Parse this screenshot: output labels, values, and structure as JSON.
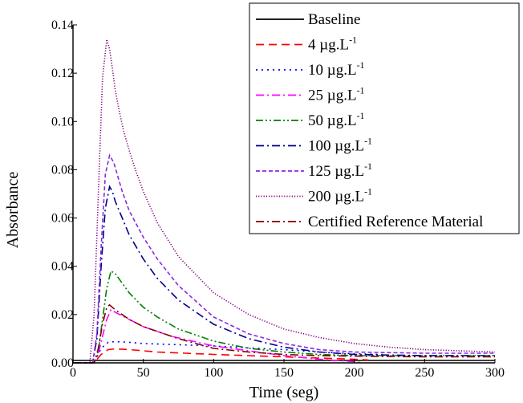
{
  "chart_data": {
    "type": "line",
    "xlabel": "Time (seg)",
    "ylabel": "Absorbance",
    "xlim": [
      0,
      300
    ],
    "ylim": [
      0,
      0.14
    ],
    "xticks": [
      0,
      50,
      100,
      150,
      200,
      250,
      300
    ],
    "yticks": [
      0.0,
      0.02,
      0.04,
      0.06,
      0.08,
      0.1,
      0.12,
      0.14
    ],
    "xtick_labels": [
      "0",
      "50",
      "100",
      "150",
      "200",
      "250",
      "300"
    ],
    "ytick_labels": [
      "0.00",
      "0.02",
      "0.04",
      "0.06",
      "0.08",
      "0.10",
      "0.12",
      "0.14"
    ],
    "grid": false,
    "legend_position": "top-right",
    "series": [
      {
        "name": "Baseline",
        "color": "#000000",
        "dash": "solid",
        "label_main": "Baseline",
        "label_sup": "",
        "x": [
          0,
          50,
          100,
          150,
          200,
          250,
          300
        ],
        "y": [
          0.001,
          0.001,
          0.001,
          0.001,
          0.001,
          0.001,
          0.001
        ]
      },
      {
        "name": "4 µg.L-1",
        "color": "#ff0000",
        "dash": "long-dash",
        "label_main": "4 µg.L",
        "label_sup": "-1",
        "x": [
          0,
          15,
          20,
          25,
          30,
          40,
          50,
          60,
          80,
          100,
          125,
          150,
          175,
          200,
          210
        ],
        "y": [
          0.0,
          0.0,
          0.0035,
          0.0055,
          0.0058,
          0.0055,
          0.005,
          0.0045,
          0.004,
          0.0035,
          0.003,
          0.0025,
          0.002,
          0.0015,
          0.0012
        ]
      },
      {
        "name": "10 µg.L-1",
        "color": "#0000ff",
        "dash": "dot",
        "label_main": "10 µg.L",
        "label_sup": "-1",
        "x": [
          0,
          15,
          20,
          25,
          30,
          40,
          50,
          75,
          100,
          125,
          150,
          175,
          200,
          220
        ],
        "y": [
          0.0,
          0.0,
          0.006,
          0.0085,
          0.0088,
          0.0085,
          0.008,
          0.0075,
          0.007,
          0.0062,
          0.0055,
          0.0045,
          0.0038,
          0.0035
        ]
      },
      {
        "name": "25 µg.L-1",
        "color": "#ff00ff",
        "dash": "dash-dot",
        "label_main": "25 µg.L",
        "label_sup": "-1",
        "x": [
          0,
          15,
          18,
          21,
          24,
          27,
          30,
          40,
          50,
          70,
          100,
          125,
          150,
          175,
          200,
          205
        ],
        "y": [
          0.0,
          0.0,
          0.004,
          0.011,
          0.018,
          0.022,
          0.021,
          0.018,
          0.015,
          0.011,
          0.007,
          0.005,
          0.003,
          0.0015,
          0.0005,
          0.0
        ]
      },
      {
        "name": "50 µg.L-1",
        "color": "#008000",
        "dash": "dash-dot-dot",
        "label_main": "50 µg.L",
        "label_sup": "-1",
        "x": [
          0,
          15,
          18,
          21,
          24,
          27,
          30,
          35,
          40,
          50,
          60,
          75,
          100,
          125,
          150,
          175,
          200,
          250,
          300
        ],
        "y": [
          0.0,
          0.0,
          0.005,
          0.018,
          0.031,
          0.038,
          0.037,
          0.033,
          0.029,
          0.023,
          0.019,
          0.014,
          0.009,
          0.006,
          0.0045,
          0.0035,
          0.003,
          0.003,
          0.003
        ]
      },
      {
        "name": "100 µg.L-1",
        "color": "#00008b",
        "dash": "dash-dot",
        "label_main": "100 µg.L",
        "label_sup": "-1",
        "x": [
          0,
          14,
          17,
          20,
          23,
          26,
          28,
          30,
          35,
          40,
          50,
          60,
          75,
          100,
          125,
          150,
          175,
          200,
          250,
          300
        ],
        "y": [
          0.0,
          0.0,
          0.01,
          0.04,
          0.064,
          0.073,
          0.071,
          0.067,
          0.06,
          0.053,
          0.043,
          0.035,
          0.026,
          0.016,
          0.01,
          0.0065,
          0.0045,
          0.0035,
          0.003,
          0.003
        ]
      },
      {
        "name": "125 µg.L-1",
        "color": "#8a2be2",
        "dash": "short-dash",
        "label_main": "125 µg.L",
        "label_sup": "-1",
        "x": [
          0,
          14,
          17,
          20,
          23,
          26,
          29,
          32,
          35,
          40,
          50,
          60,
          75,
          100,
          125,
          150,
          175,
          200,
          250,
          300
        ],
        "y": [
          0.0,
          0.0,
          0.012,
          0.048,
          0.078,
          0.086,
          0.083,
          0.077,
          0.071,
          0.063,
          0.052,
          0.043,
          0.032,
          0.019,
          0.012,
          0.008,
          0.0055,
          0.0045,
          0.004,
          0.004
        ]
      },
      {
        "name": "200 µg.L-1",
        "color": "#800080",
        "dash": "fine-dot",
        "label_main": "200 µg.L",
        "label_sup": "-1",
        "x": [
          0,
          12,
          15,
          18,
          21,
          24,
          26,
          28,
          30,
          33,
          36,
          40,
          45,
          50,
          60,
          75,
          100,
          125,
          150,
          175,
          200,
          225,
          250,
          300
        ],
        "y": [
          0.0,
          0.0,
          0.02,
          0.07,
          0.118,
          0.134,
          0.13,
          0.122,
          0.113,
          0.104,
          0.096,
          0.088,
          0.079,
          0.071,
          0.058,
          0.044,
          0.029,
          0.02,
          0.014,
          0.0105,
          0.008,
          0.0065,
          0.0055,
          0.0045
        ]
      },
      {
        "name": "Certified Reference Material",
        "color": "#800000",
        "dash": "dash-dot",
        "label_main": "Certified Reference Material",
        "label_sup": "",
        "x": [
          0,
          15,
          18,
          21,
          24,
          26,
          28,
          30,
          40,
          50,
          75,
          100,
          125,
          150,
          175,
          200,
          250,
          300
        ],
        "y": [
          0.0,
          0.0,
          0.006,
          0.016,
          0.023,
          0.024,
          0.023,
          0.022,
          0.018,
          0.015,
          0.01,
          0.006,
          0.0045,
          0.0035,
          0.003,
          0.0028,
          0.0025,
          0.0025
        ]
      }
    ]
  }
}
